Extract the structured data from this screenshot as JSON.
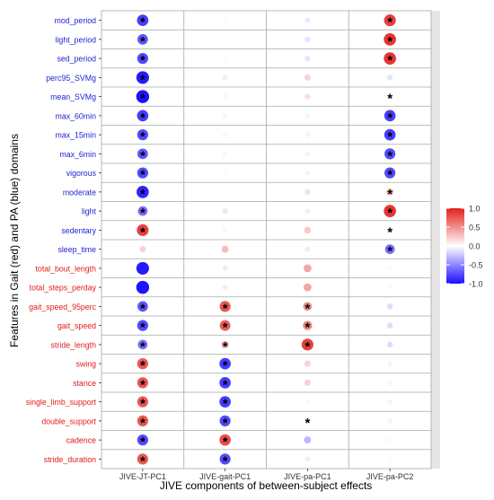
{
  "chart_data": {
    "type": "dot-matrix",
    "xlabel": "JIVE components of between-subject effects",
    "ylabel": "Features in Gait (red) and PA (blue) domains",
    "components": [
      "JIVE-JT-PC1",
      "JIVE-gait-PC1",
      "JIVE-pa-PC1",
      "JIVE-pa-PC2"
    ],
    "features": [
      {
        "name": "mod_period",
        "domain": "PA"
      },
      {
        "name": "light_period",
        "domain": "PA"
      },
      {
        "name": "sed_period",
        "domain": "PA"
      },
      {
        "name": "perc95_SVMg",
        "domain": "PA"
      },
      {
        "name": "mean_SVMg",
        "domain": "PA"
      },
      {
        "name": "max_60min",
        "domain": "PA"
      },
      {
        "name": "max_15min",
        "domain": "PA"
      },
      {
        "name": "max_6min",
        "domain": "PA"
      },
      {
        "name": "vigorous",
        "domain": "PA"
      },
      {
        "name": "moderate",
        "domain": "PA"
      },
      {
        "name": "light",
        "domain": "PA"
      },
      {
        "name": "sedentary",
        "domain": "PA"
      },
      {
        "name": "sleep_time",
        "domain": "PA"
      },
      {
        "name": "total_bout_length",
        "domain": "Gait"
      },
      {
        "name": "total_steps_perday",
        "domain": "Gait"
      },
      {
        "name": "gait_speed_95perc",
        "domain": "Gait"
      },
      {
        "name": "gait_speed",
        "domain": "Gait"
      },
      {
        "name": "stride_length",
        "domain": "Gait"
      },
      {
        "name": "swing",
        "domain": "Gait"
      },
      {
        "name": "stance",
        "domain": "Gait"
      },
      {
        "name": "single_limb_support",
        "domain": "Gait"
      },
      {
        "name": "double_support",
        "domain": "Gait"
      },
      {
        "name": "cadence",
        "domain": "Gait"
      },
      {
        "name": "stride_duration",
        "domain": "Gait"
      }
    ],
    "values": [
      [
        -0.8,
        0.02,
        -0.1,
        0.85
      ],
      [
        -0.7,
        0.02,
        -0.12,
        0.9
      ],
      [
        -0.75,
        0.02,
        -0.12,
        0.9
      ],
      [
        -0.95,
        0.1,
        0.2,
        -0.12
      ],
      [
        -0.98,
        0.05,
        0.15,
        0.02
      ],
      [
        -0.8,
        0.05,
        -0.05,
        -0.8
      ],
      [
        -0.75,
        0.05,
        -0.05,
        -0.8
      ],
      [
        -0.7,
        0.05,
        -0.05,
        -0.75
      ],
      [
        -0.75,
        0.02,
        -0.05,
        -0.75
      ],
      [
        -0.9,
        0.02,
        0.15,
        0.3
      ],
      [
        -0.6,
        -0.1,
        0.08,
        0.9
      ],
      [
        0.85,
        0.05,
        0.25,
        0.03
      ],
      [
        0.2,
        0.3,
        0.1,
        -0.6
      ],
      [
        -0.95,
        0.1,
        0.4,
        -0.02
      ],
      [
        -0.98,
        0.1,
        0.4,
        -0.02
      ],
      [
        -0.7,
        0.75,
        0.5,
        -0.15
      ],
      [
        -0.75,
        0.72,
        0.55,
        -0.15
      ],
      [
        -0.6,
        0.35,
        0.85,
        -0.15
      ],
      [
        0.75,
        -0.8,
        0.2,
        -0.05
      ],
      [
        0.75,
        -0.8,
        0.2,
        -0.05
      ],
      [
        0.75,
        -0.8,
        0.05,
        -0.05
      ],
      [
        0.75,
        -0.75,
        0.05,
        -0.05
      ],
      [
        -0.75,
        0.8,
        -0.3,
        -0.02
      ],
      [
        0.75,
        -0.75,
        0.1,
        -0.02
      ]
    ],
    "significant": [
      [
        1,
        0,
        0,
        1
      ],
      [
        1,
        0,
        0,
        1
      ],
      [
        1,
        0,
        0,
        1
      ],
      [
        1,
        0,
        0,
        0
      ],
      [
        1,
        0,
        0,
        1
      ],
      [
        1,
        0,
        0,
        1
      ],
      [
        1,
        0,
        0,
        1
      ],
      [
        1,
        0,
        0,
        1
      ],
      [
        1,
        0,
        0,
        1
      ],
      [
        1,
        0,
        0,
        1
      ],
      [
        1,
        0,
        0,
        1
      ],
      [
        1,
        0,
        0,
        1
      ],
      [
        0,
        0,
        0,
        1
      ],
      [
        0,
        0,
        0,
        0
      ],
      [
        0,
        0,
        0,
        0
      ],
      [
        1,
        1,
        1,
        0
      ],
      [
        1,
        1,
        1,
        0
      ],
      [
        1,
        1,
        1,
        0
      ],
      [
        1,
        1,
        0,
        0
      ],
      [
        1,
        1,
        0,
        0
      ],
      [
        1,
        1,
        0,
        0
      ],
      [
        1,
        1,
        1,
        0
      ],
      [
        1,
        1,
        0,
        0
      ],
      [
        1,
        1,
        0,
        0
      ]
    ],
    "significance_marker": "*",
    "legend": {
      "placement": "right",
      "ticks": [
        1.0,
        0.5,
        0.0,
        -0.5,
        -1.0
      ],
      "tick_labels": [
        "1.0",
        "0.5",
        "0.0",
        "-0.5",
        "-1.0"
      ],
      "range": [
        -1,
        1
      ]
    },
    "colors": {
      "negative": "#1a0dff",
      "zero": "#ffffff",
      "positive": "#e3201b",
      "pa_label": "#1f1fd0",
      "gait_label": "#e01c1c",
      "panel_strip": "#e5e5e5",
      "grid": "#a8a8a8"
    }
  }
}
